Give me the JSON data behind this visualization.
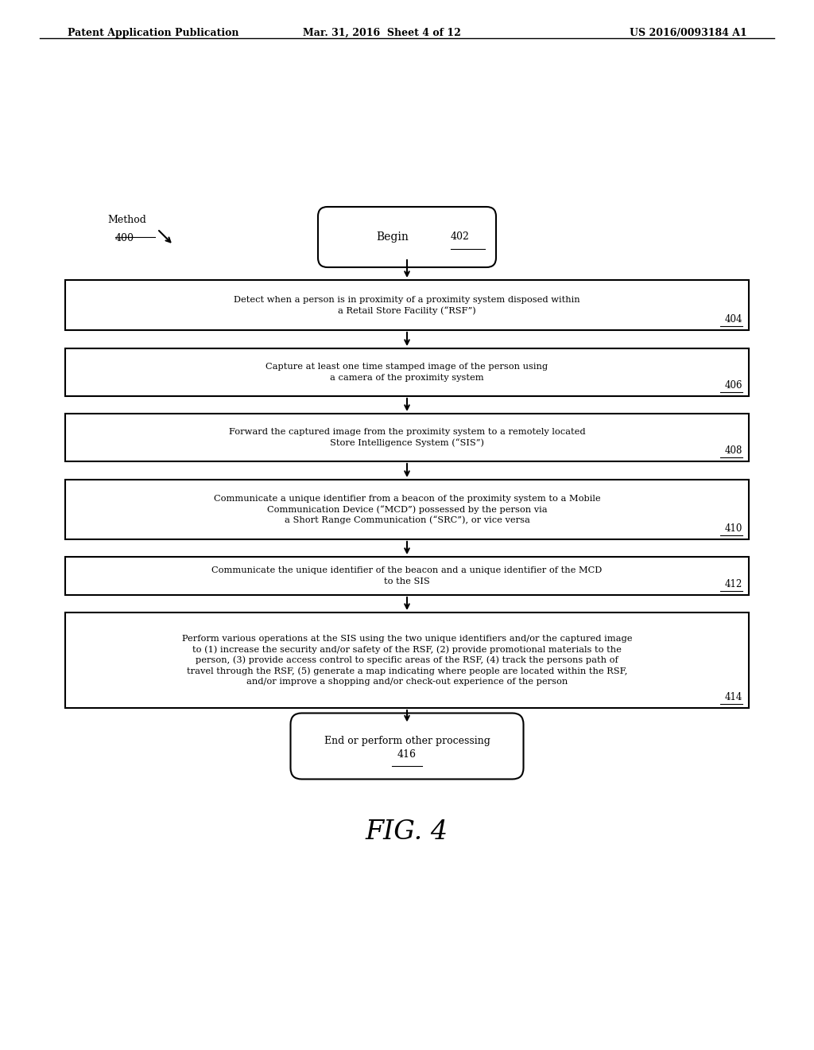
{
  "header_left": "Patent Application Publication",
  "header_mid": "Mar. 31, 2016  Sheet 4 of 12",
  "header_right": "US 2016/0093184 A1",
  "method_label": "Method",
  "method_number": "400",
  "fig_label": "FIG. 4",
  "begin_label": "Begin",
  "begin_number": "402",
  "end_label": "End or perform other processing",
  "end_number": "416",
  "boxes": [
    {
      "id": "404",
      "lines": [
        "Detect when a person is in proximity of a proximity system disposed within",
        "a Retail Store Facility (“RSF”)"
      ],
      "number": "404"
    },
    {
      "id": "406",
      "lines": [
        "Capture at least one time stamped image of the person using",
        "a camera of the proximity system"
      ],
      "number": "406"
    },
    {
      "id": "408",
      "lines": [
        "Forward the captured image from the proximity system to a remotely located",
        "Store Intelligence System (“SIS”)"
      ],
      "number": "408"
    },
    {
      "id": "410",
      "lines": [
        "Communicate a unique identifier from a beacon of the proximity system to a Mobile",
        "Communication Device (“MCD”) possessed by the person via",
        "a Short Range Communication (“SRC”), or vice versa"
      ],
      "number": "410"
    },
    {
      "id": "412",
      "lines": [
        "Communicate the unique identifier of the beacon and a unique identifier of the MCD",
        "to the SIS"
      ],
      "number": "412"
    },
    {
      "id": "414",
      "lines": [
        "Perform various operations at the SIS using the two unique identifiers and/or the captured image",
        "to (1) increase the security and/or safety of the RSF, (2) provide promotional materials to the",
        "person, (3) provide access control to specific areas of the RSF, (4) track the persons path of",
        "travel through the RSF, (5) generate a map indicating where people are located within the RSF,",
        "and/or improve a shopping and/or check-out experience of the person"
      ],
      "number": "414"
    }
  ],
  "bg_color": "#ffffff",
  "box_color": "#000000",
  "text_color": "#000000",
  "arrow_color": "#000000"
}
